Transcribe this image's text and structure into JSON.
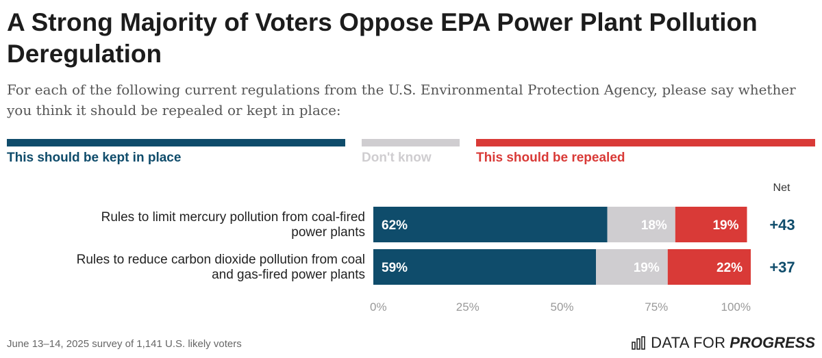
{
  "header": {
    "title": "A Strong Majority of Voters Oppose EPA Power Plant Pollution Deregulation",
    "subtitle": "For each of the following current regulations from the U.S. Environmental Protection Agency, please say whether you think it should be repealed or kept in place:"
  },
  "legend": [
    {
      "label": "This should be kept in place",
      "color": "#0f4c6b"
    },
    {
      "label": "Don't know",
      "color": "#cfcdd0"
    },
    {
      "label": "This should be repealed",
      "color": "#d93a37"
    }
  ],
  "net_label": "Net",
  "chart_data": {
    "type": "bar",
    "orientation": "horizontal",
    "stacked": true,
    "categories": [
      "Rules to limit mercury pollution from coal-fired power plants",
      "Rules to reduce carbon dioxide pollution from coal and gas-fired power plants"
    ],
    "series": [
      {
        "name": "This should be kept in place",
        "values": [
          62,
          59
        ],
        "color": "#0f4c6b"
      },
      {
        "name": "Don't know",
        "values": [
          18,
          19
        ],
        "color": "#cfcdd0"
      },
      {
        "name": "This should be repealed",
        "values": [
          19,
          22
        ],
        "color": "#d93a37"
      }
    ],
    "data_labels": [
      [
        "62%",
        "18%",
        "19%"
      ],
      [
        "59%",
        "19%",
        "22%"
      ]
    ],
    "net": [
      "+43",
      "+37"
    ],
    "xlim": [
      0,
      100
    ],
    "xticks": [
      "0%",
      "25%",
      "50%",
      "75%",
      "100%"
    ],
    "grid": false
  },
  "footer": {
    "note": "June 13–14, 2025 survey of 1,141 U.S. likely voters",
    "brand_prefix": "DATA FOR",
    "brand_emphasis": "PROGRESS"
  }
}
